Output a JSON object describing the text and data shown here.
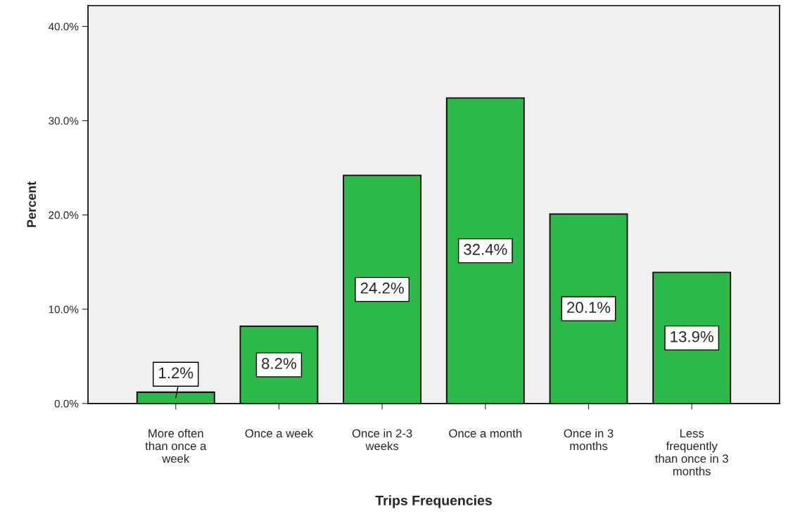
{
  "chart_data": {
    "type": "bar",
    "categories": [
      "More often than once a week",
      "Once a week",
      "Once in 2-3 weeks",
      "Once a month",
      "Once in 3 months",
      "Less frequently than once in 3 months"
    ],
    "values": [
      1.2,
      8.2,
      24.2,
      32.4,
      20.1,
      13.9
    ],
    "value_labels": [
      "1.2%",
      "8.2%",
      "24.2%",
      "32.4%",
      "20.1%",
      "13.9%"
    ],
    "color": "#2db84a",
    "xlabel": "Trips Frequencies",
    "ylabel": "Percent",
    "ylim": [
      0,
      42.2
    ],
    "yticks": [
      {
        "value": 0,
        "label": "0.0%"
      },
      {
        "value": 10,
        "label": "10.0%"
      },
      {
        "value": 20,
        "label": "20.0%"
      },
      {
        "value": 30,
        "label": "30.0%"
      },
      {
        "value": 40,
        "label": "40.0%"
      }
    ],
    "grid": false
  }
}
